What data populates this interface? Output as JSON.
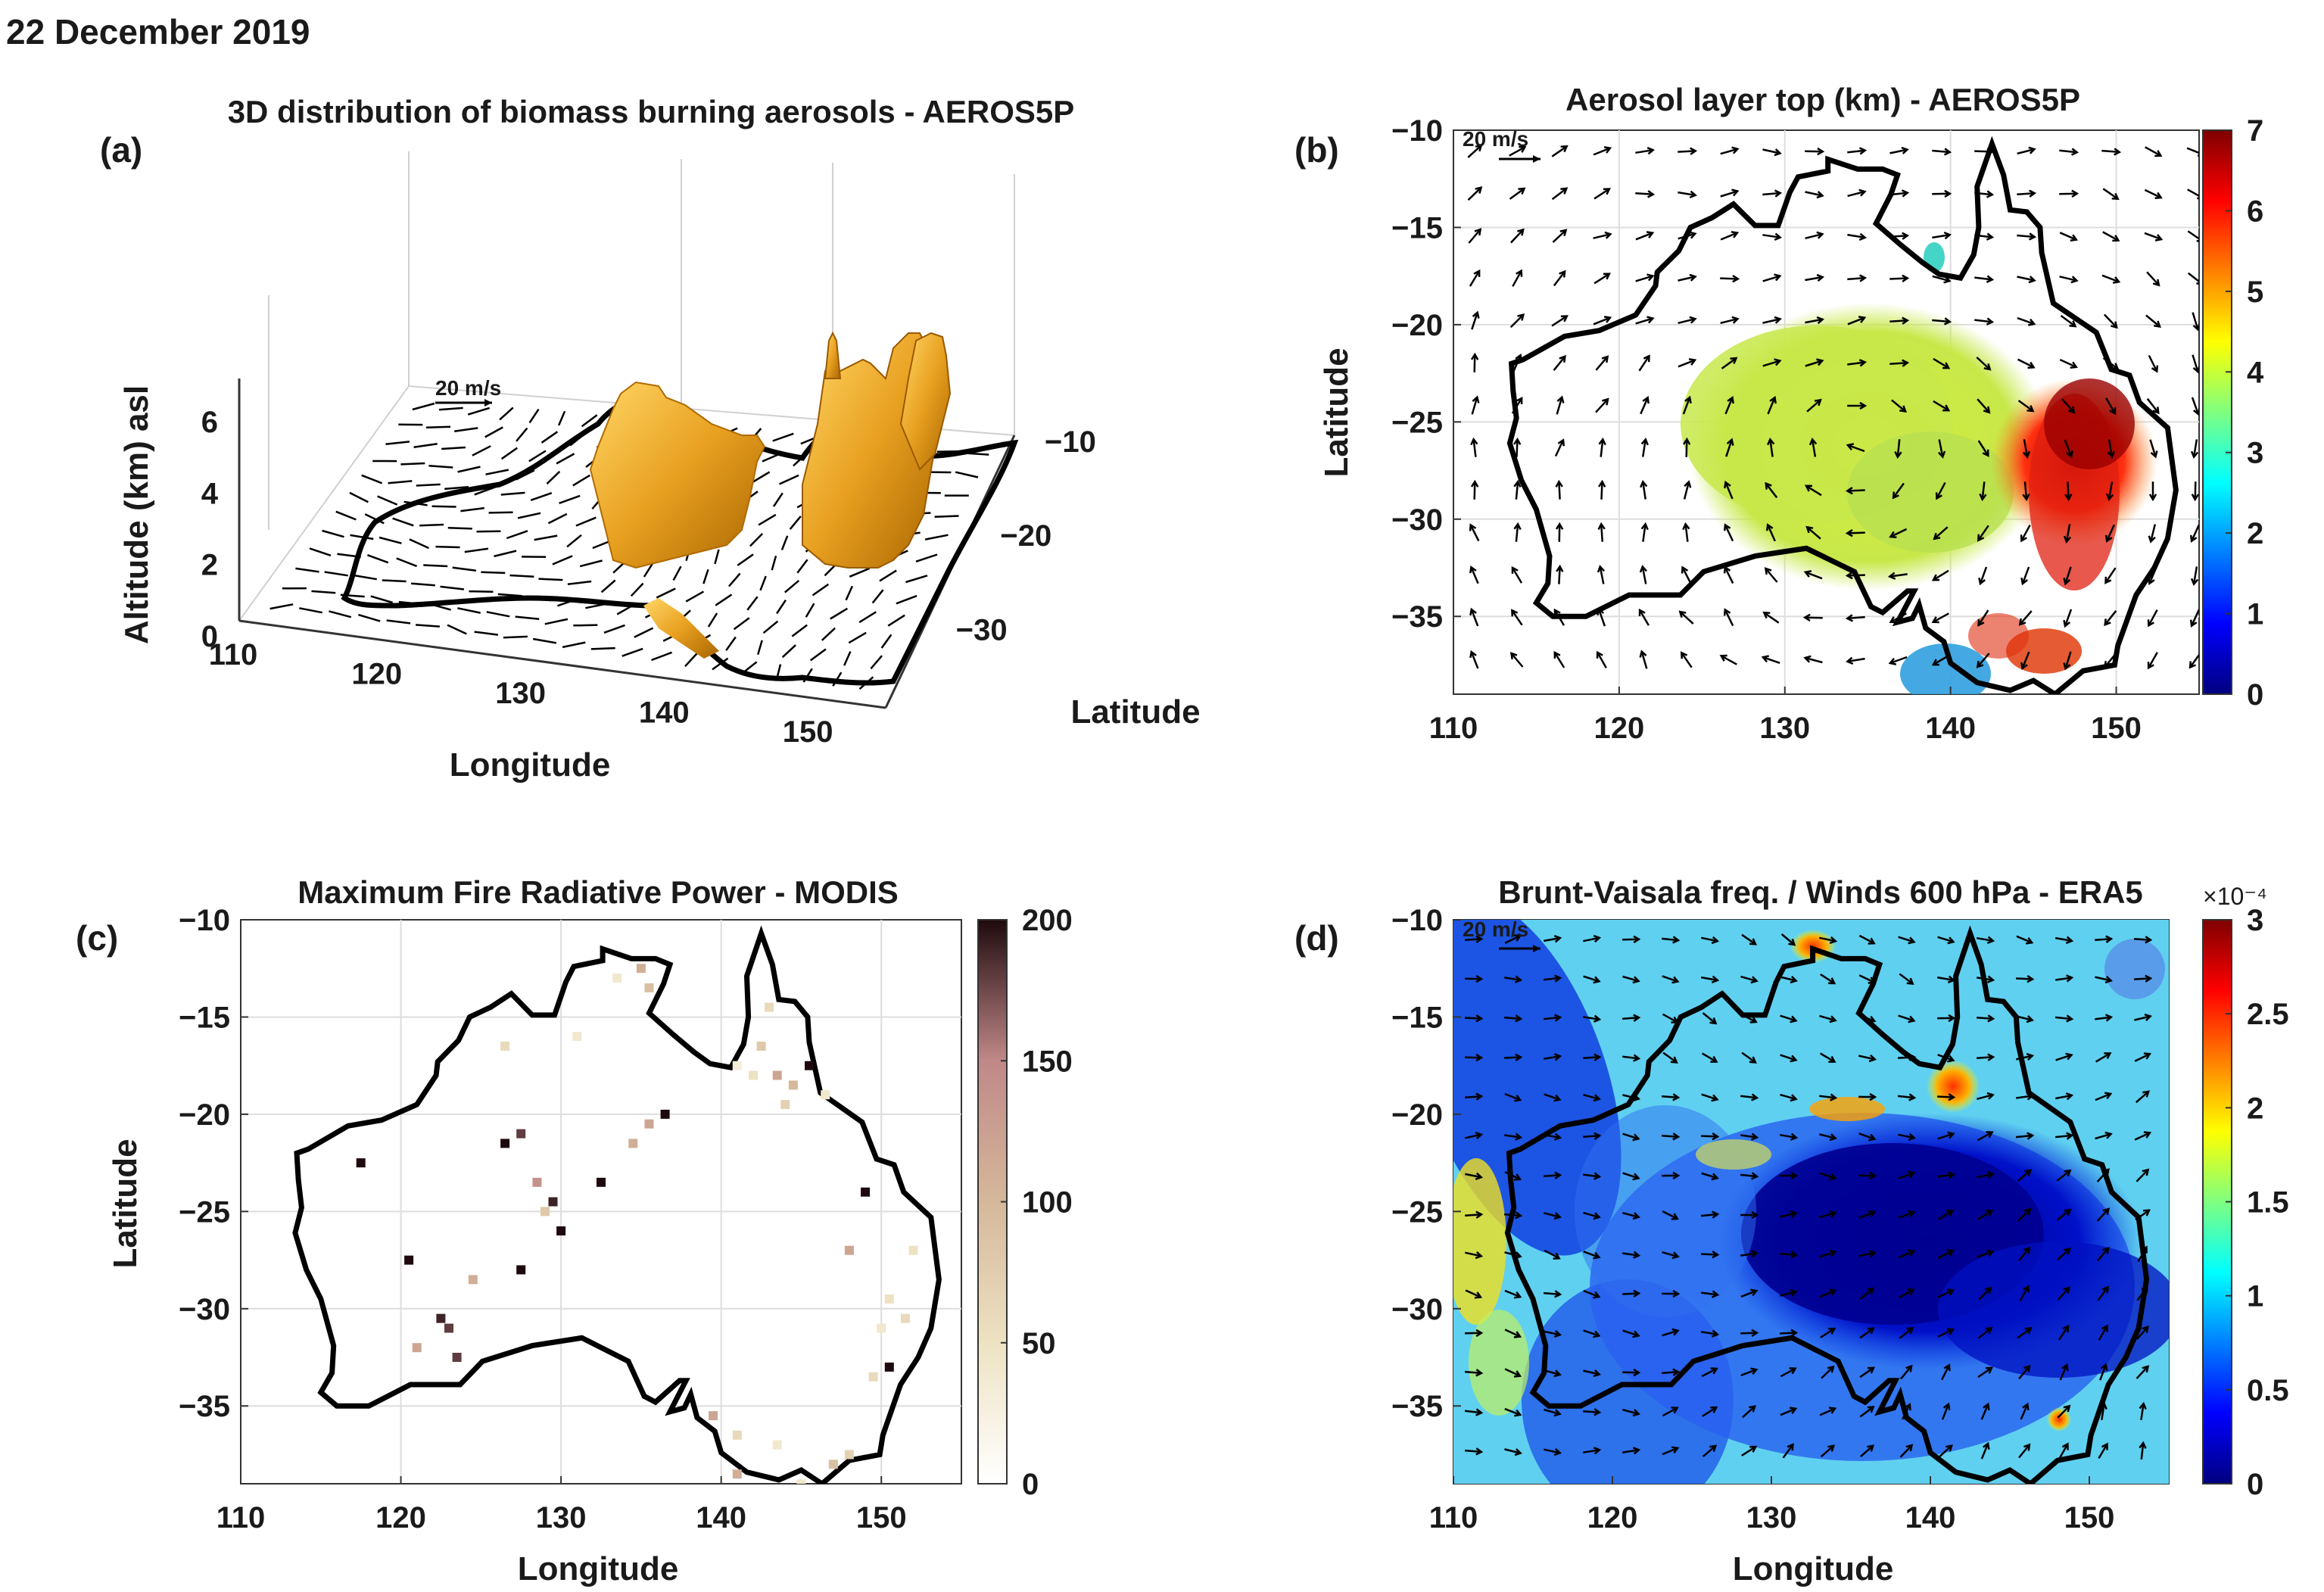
{
  "date_label": "22 December 2019",
  "colors": {
    "land_outline": "#000000",
    "wind_arrow": "#000000",
    "plume": "#e8a020",
    "frp_high": "#2b1015",
    "frp_low": "#f6f2df"
  },
  "chart_data": [
    {
      "panel": "(a)",
      "type": "3d surface",
      "title": "3D distribution of biomass burning aerosols - AEROS5P",
      "xlabel": "Longitude",
      "ylabel": "Latitude",
      "zlabel": "Altitude (km) asl",
      "x_ticks": [
        "110",
        "120",
        "130",
        "140",
        "150"
      ],
      "y_ticks": [
        "-10",
        "-20",
        "-30"
      ],
      "z_ticks": [
        "0",
        "2",
        "4",
        "6"
      ],
      "xlim": [
        110,
        155
      ],
      "ylim": [
        -39,
        -10
      ],
      "zlim": [
        0,
        7
      ],
      "wind_scale_label": "20 m/s",
      "plumes": [
        {
          "lon_range": [
            128,
            136
          ],
          "lat_range": [
            -28,
            -20
          ],
          "top_km": 6
        },
        {
          "lon_range": [
            142,
            151
          ],
          "lat_range": [
            -31,
            -24
          ],
          "top_km": 7
        }
      ]
    },
    {
      "panel": "(b)",
      "type": "heatmap",
      "title": "Aerosol layer top (km) - AEROS5P",
      "xlabel": "",
      "ylabel": "Latitude",
      "x_ticks": [
        "110",
        "120",
        "130",
        "140",
        "150"
      ],
      "y_ticks": [
        "-10",
        "-15",
        "-20",
        "-25",
        "-30",
        "-35"
      ],
      "xlim": [
        110,
        155
      ],
      "ylim": [
        -39,
        -10
      ],
      "colorbar": {
        "min": 0,
        "max": 7,
        "ticks": [
          "0",
          "1",
          "2",
          "3",
          "4",
          "5",
          "6",
          "7"
        ],
        "colormap": "jet"
      },
      "wind_scale_label": "20 m/s",
      "regions": [
        {
          "lon_range": [
            128,
            141
          ],
          "lat_range": [
            -30,
            -21
          ],
          "value_km": 4
        },
        {
          "lon_range": [
            144,
            152
          ],
          "lat_range": [
            -33,
            -24
          ],
          "value_km": 6
        },
        {
          "lon_range": [
            137,
            145
          ],
          "lat_range": [
            -39,
            -36
          ],
          "value_km": 2
        }
      ]
    },
    {
      "panel": "(c)",
      "type": "scatter",
      "title": "Maximum Fire Radiative Power - MODIS",
      "xlabel": "Longitude",
      "ylabel": "Latitude",
      "x_ticks": [
        "110",
        "120",
        "130",
        "140",
        "150"
      ],
      "y_ticks": [
        "-10",
        "-15",
        "-20",
        "-25",
        "-30",
        "-35"
      ],
      "xlim": [
        110,
        155
      ],
      "ylim": [
        -39,
        -10
      ],
      "colorbar": {
        "min": 0,
        "max": 200,
        "ticks": [
          "0",
          "50",
          "100",
          "150",
          "200"
        ],
        "colormap": "pink"
      },
      "points": [
        {
          "lon": 117.5,
          "lat": -22.5,
          "frp": 200
        },
        {
          "lon": 120.5,
          "lat": -27.5,
          "frp": 200
        },
        {
          "lon": 122.5,
          "lat": -30.5,
          "frp": 190
        },
        {
          "lon": 123,
          "lat": -31,
          "frp": 180
        },
        {
          "lon": 121,
          "lat": -32,
          "frp": 120
        },
        {
          "lon": 123.5,
          "lat": -32.5,
          "frp": 180
        },
        {
          "lon": 124.5,
          "lat": -28.5,
          "frp": 110
        },
        {
          "lon": 126.5,
          "lat": -21.5,
          "frp": 200
        },
        {
          "lon": 127.5,
          "lat": -21,
          "frp": 180
        },
        {
          "lon": 127.5,
          "lat": -28,
          "frp": 200
        },
        {
          "lon": 128.5,
          "lat": -23.5,
          "frp": 140
        },
        {
          "lon": 129.5,
          "lat": -24.5,
          "frp": 190
        },
        {
          "lon": 130,
          "lat": -26,
          "frp": 200
        },
        {
          "lon": 129,
          "lat": -25,
          "frp": 80
        },
        {
          "lon": 132.5,
          "lat": -23.5,
          "frp": 200
        },
        {
          "lon": 133.5,
          "lat": -13,
          "frp": 40
        },
        {
          "lon": 135,
          "lat": -12.5,
          "frp": 110
        },
        {
          "lon": 135.5,
          "lat": -13.5,
          "frp": 90
        },
        {
          "lon": 136.5,
          "lat": -20,
          "frp": 200
        },
        {
          "lon": 135.5,
          "lat": -20.5,
          "frp": 120
        },
        {
          "lon": 134.5,
          "lat": -21.5,
          "frp": 110
        },
        {
          "lon": 126.5,
          "lat": -16.5,
          "frp": 60
        },
        {
          "lon": 131,
          "lat": -16,
          "frp": 40
        },
        {
          "lon": 143,
          "lat": -14.5,
          "frp": 60
        },
        {
          "lon": 142.5,
          "lat": -16.5,
          "frp": 80
        },
        {
          "lon": 143.5,
          "lat": -18,
          "frp": 120
        },
        {
          "lon": 144.5,
          "lat": -18.5,
          "frp": 100
        },
        {
          "lon": 145.5,
          "lat": -17.5,
          "frp": 200
        },
        {
          "lon": 144,
          "lat": -19.5,
          "frp": 70
        },
        {
          "lon": 142,
          "lat": -18,
          "frp": 50
        },
        {
          "lon": 141,
          "lat": -17.5,
          "frp": 30
        },
        {
          "lon": 146.5,
          "lat": -19,
          "frp": 40
        },
        {
          "lon": 149,
          "lat": -24,
          "frp": 200
        },
        {
          "lon": 148,
          "lat": -27,
          "frp": 120
        },
        {
          "lon": 150.5,
          "lat": -29.5,
          "frp": 50
        },
        {
          "lon": 151.5,
          "lat": -30.5,
          "frp": 60
        },
        {
          "lon": 150,
          "lat": -31,
          "frp": 40
        },
        {
          "lon": 150.5,
          "lat": -33,
          "frp": 200
        },
        {
          "lon": 149.5,
          "lat": -33.5,
          "frp": 60
        },
        {
          "lon": 152,
          "lat": -27,
          "frp": 50
        },
        {
          "lon": 139.5,
          "lat": -35.5,
          "frp": 120
        },
        {
          "lon": 141,
          "lat": -36.5,
          "frp": 60
        },
        {
          "lon": 143.5,
          "lat": -37,
          "frp": 40
        },
        {
          "lon": 141,
          "lat": -38.5,
          "frp": 110
        },
        {
          "lon": 147,
          "lat": -38,
          "frp": 90
        },
        {
          "lon": 148,
          "lat": -37.5,
          "frp": 70
        },
        {
          "lon": 145,
          "lat": -39,
          "frp": 40
        }
      ]
    },
    {
      "panel": "(d)",
      "type": "heatmap",
      "title": "Brunt-Vaisala freq. / Winds 600 hPa - ERA5",
      "xlabel": "Longitude",
      "ylabel": "",
      "x_ticks": [
        "110",
        "120",
        "130",
        "140",
        "150"
      ],
      "y_ticks": [
        "-10",
        "-15",
        "-20",
        "-25",
        "-30",
        "-35"
      ],
      "xlim": [
        110,
        155
      ],
      "ylim": [
        -39,
        -10
      ],
      "colorbar": {
        "min": 0,
        "max": 0.0003,
        "ticks": [
          "0",
          "0.5",
          "1",
          "1.5",
          "2",
          "2.5",
          "3"
        ],
        "multiplier": "×10⁻⁴",
        "colormap": "jet"
      },
      "wind_scale_label": "20 m/s",
      "regions": [
        {
          "lon_range": [
            127,
            149
          ],
          "lat_range": [
            -32,
            -22
          ],
          "value_x1e4": 0.1
        },
        {
          "lon_range": [
            110,
            116
          ],
          "lat_range": [
            -22,
            -12
          ],
          "value_x1e4": 0.3
        },
        {
          "lon_range": [
            141,
            143
          ],
          "lat_range": [
            -20,
            -18
          ],
          "value_x1e4": 2.8
        }
      ]
    }
  ]
}
